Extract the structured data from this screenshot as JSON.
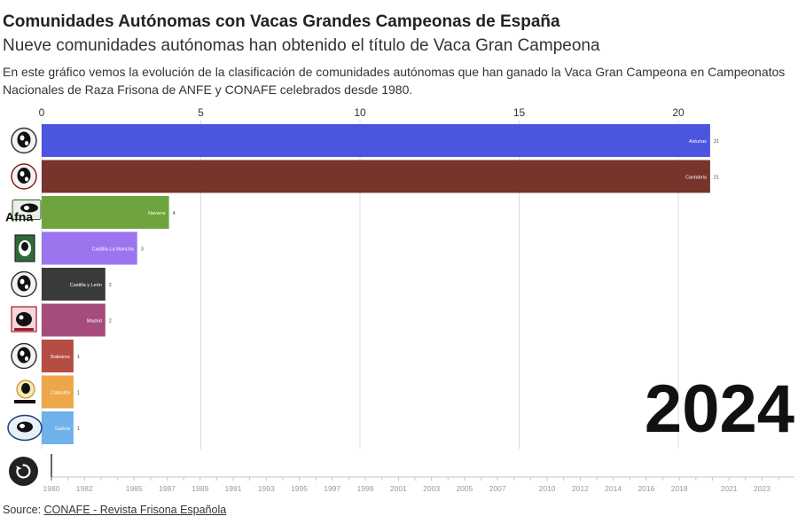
{
  "header": {
    "title": "Comunidades Autónomas con Vacas Grandes Campeonas de España",
    "subtitle": "Nueve comunidades autónomas han obtenido el título de Vaca Gran Campeona",
    "description": "En este gráfico vemos la evolución de la clasificación de comunidades autónomas que han ganado la Vaca Gran Campeona en Campeonatos Nacionales de Raza Frisona de ANFE y CONAFE celebrados desde 1980."
  },
  "chart_data": {
    "type": "bar",
    "orientation": "horizontal",
    "current_year": "2024",
    "xlim": [
      0,
      22
    ],
    "x_ticks": [
      0,
      5,
      10,
      15,
      20
    ],
    "grid": true,
    "categories": [
      "Asturias",
      "Cantabria",
      "Navarra",
      "Castilla-La Mancha",
      "Castilla y León",
      "Madrid",
      "Baleares",
      "Cataluña",
      "Galicia"
    ],
    "values": [
      21,
      21,
      4,
      3,
      2,
      2,
      1,
      1,
      1
    ],
    "colors": [
      "#4c55e0",
      "#76342a",
      "#6ea33e",
      "#9b75ee",
      "#3a3a3a",
      "#a64c7d",
      "#b54d42",
      "#eda649",
      "#6fb1ea"
    ],
    "logos": [
      "asturias-logo",
      "cantabria-logo",
      "afna-logo",
      "castilla-la-mancha-logo",
      "castilla-leon-logo",
      "madrid-logo",
      "baleares-logo",
      "fefric-logo",
      "galicia-logo"
    ],
    "logo_text": {
      "afna": "Afna"
    },
    "timeline": {
      "start": 1980,
      "end": 2024,
      "labels": [
        "1980",
        "1982",
        "1985",
        "1987",
        "1989",
        "1991",
        "1993",
        "1995",
        "1997",
        "1999",
        "2001",
        "2003",
        "2005",
        "2007",
        "2010",
        "2012",
        "2014",
        "2016",
        "2018",
        "2021",
        "2023"
      ]
    }
  },
  "footer": {
    "source_prefix": "Source: ",
    "source_link": "CONAFE - Revista Frisona Española"
  },
  "controls": {
    "replay_icon": "replay-icon"
  }
}
